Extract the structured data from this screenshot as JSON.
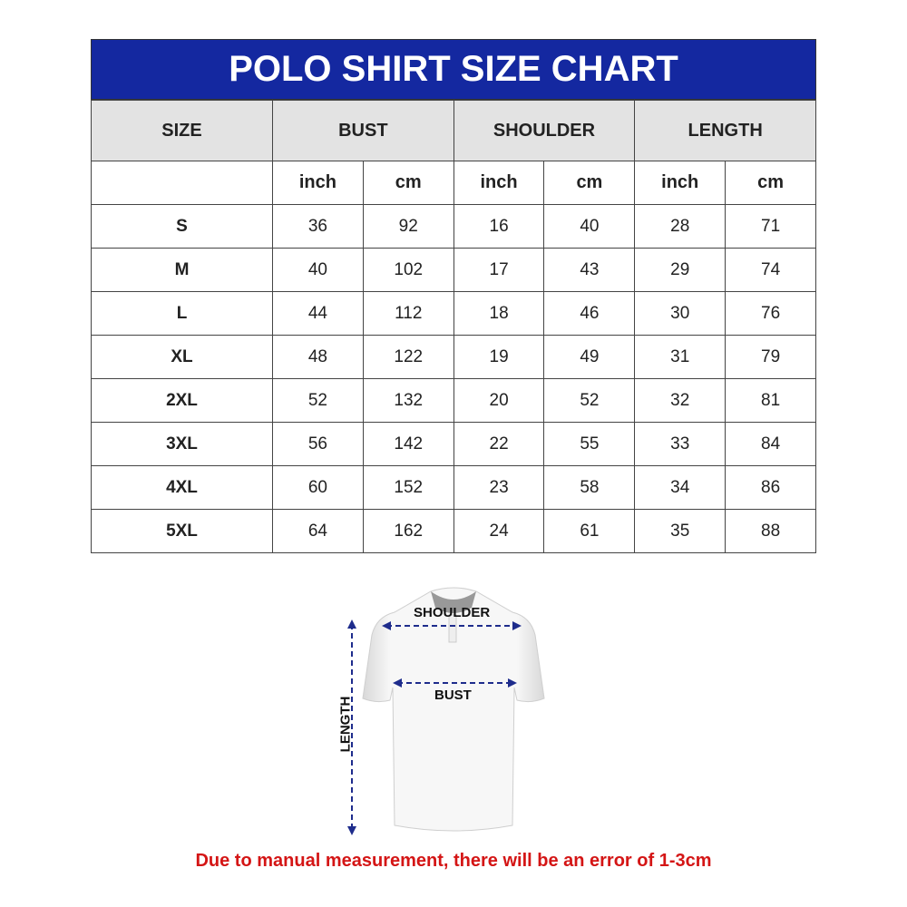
{
  "title": "POLO SHIRT SIZE CHART",
  "colors": {
    "header": "#1428a0",
    "note": "#d41515",
    "arrows": "#1e2c8c"
  },
  "headers": [
    "SIZE",
    "BUST",
    "SHOULDER",
    "LENGTH"
  ],
  "units": [
    "inch",
    "cm",
    "inch",
    "cm",
    "inch",
    "cm"
  ],
  "rows": [
    [
      "S",
      "36",
      "92",
      "16",
      "40",
      "28",
      "71"
    ],
    [
      "M",
      "40",
      "102",
      "17",
      "43",
      "29",
      "74"
    ],
    [
      "L",
      "44",
      "112",
      "18",
      "46",
      "30",
      "76"
    ],
    [
      "XL",
      "48",
      "122",
      "19",
      "49",
      "31",
      "79"
    ],
    [
      "2XL",
      "52",
      "132",
      "20",
      "52",
      "32",
      "81"
    ],
    [
      "3XL",
      "56",
      "142",
      "22",
      "55",
      "33",
      "84"
    ],
    [
      "4XL",
      "60",
      "152",
      "23",
      "58",
      "34",
      "86"
    ],
    [
      "5XL",
      "64",
      "162",
      "24",
      "61",
      "35",
      "88"
    ]
  ],
  "diagram": {
    "shoulder": "SHOULDER",
    "bust": "BUST",
    "length": "LENGTH"
  },
  "note": "Due to manual measurement, there will be an error of 1-3cm"
}
